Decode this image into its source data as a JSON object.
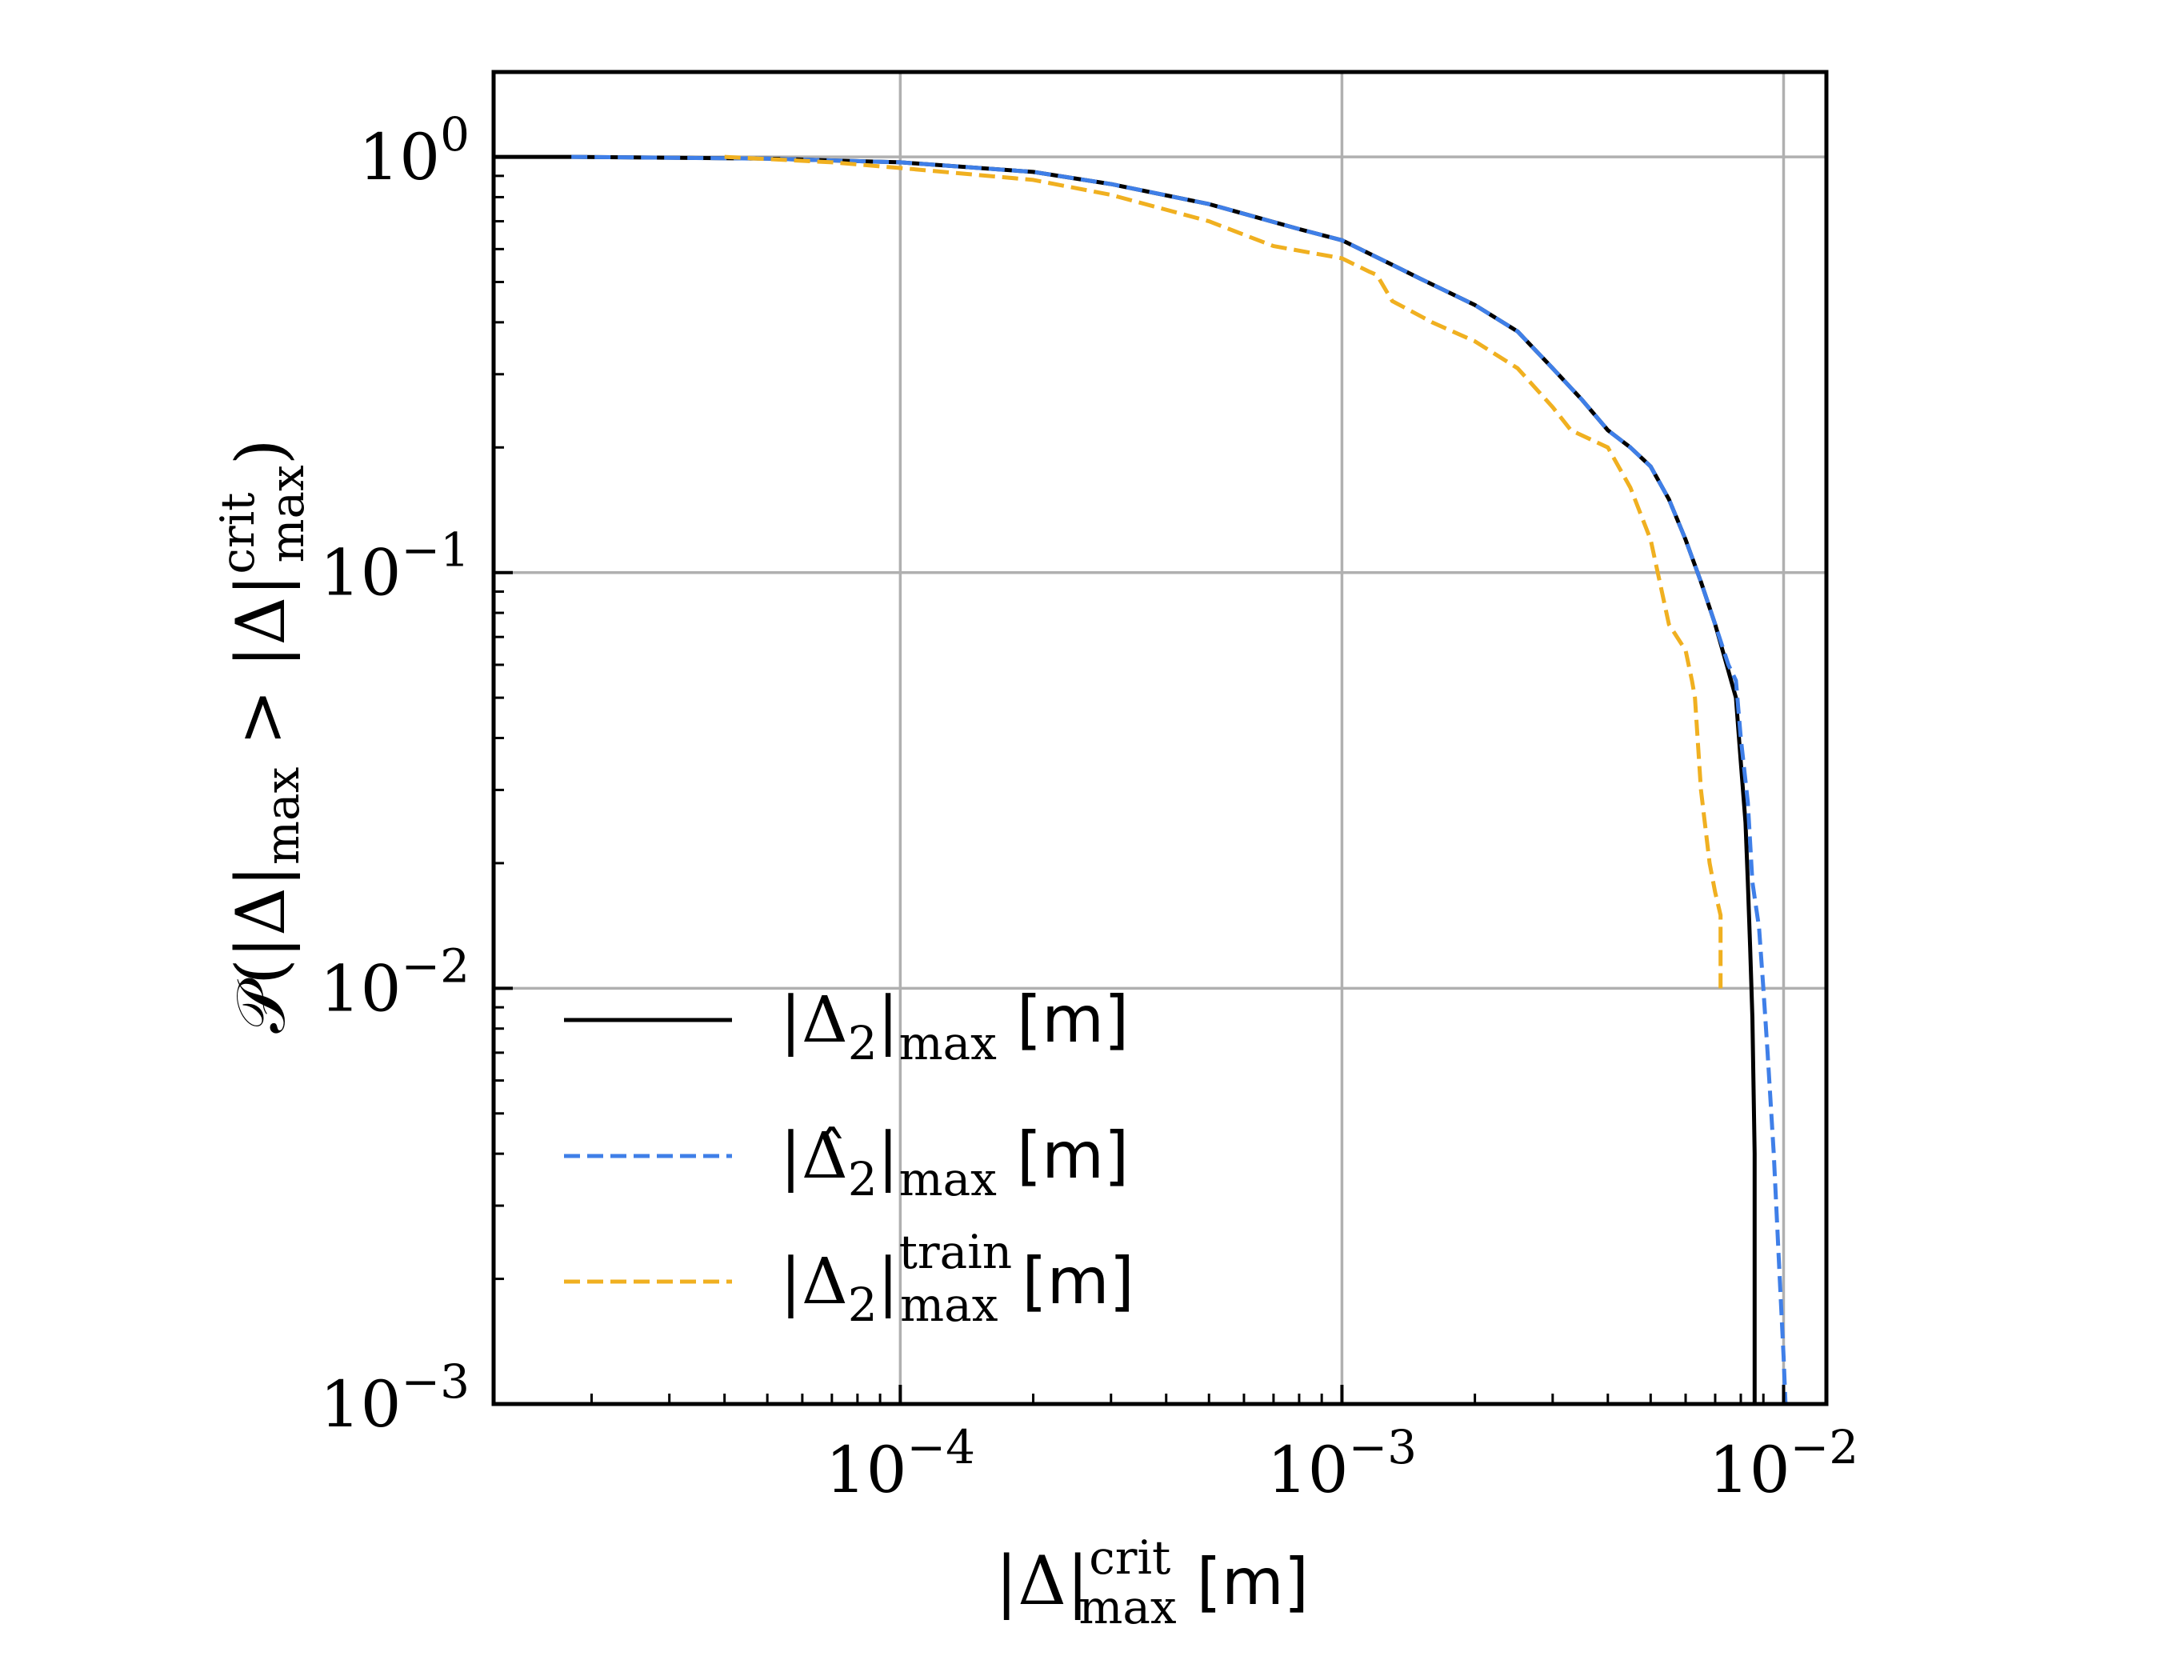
{
  "chart_data": {
    "type": "line",
    "xscale": "log",
    "yscale": "log",
    "xlim": [
      1.2e-05,
      0.0125
    ],
    "ylim": [
      0.001,
      1.6
    ],
    "grid": true,
    "legend_position": "lower-left",
    "xlabel": {
      "main": "|Δ|",
      "sup": "crit",
      "sub": "max",
      "unit": "[m]"
    },
    "ylabel": {
      "prefix": "𝒫(|Δ|",
      "sub1": "max",
      "middle": " > |Δ|",
      "sup2": "crit",
      "sub2": "max",
      "suffix": ")"
    },
    "xticks": [
      {
        "value": 0.0001,
        "base": "10",
        "exp": "−4"
      },
      {
        "value": 0.001,
        "base": "10",
        "exp": "−3"
      },
      {
        "value": 0.01,
        "base": "10",
        "exp": "−2"
      }
    ],
    "yticks": [
      {
        "value": 1,
        "base": "10",
        "exp": "0"
      },
      {
        "value": 0.1,
        "base": "10",
        "exp": "−1"
      },
      {
        "value": 0.01,
        "base": "10",
        "exp": "−2"
      },
      {
        "value": 0.001,
        "base": "10",
        "exp": "−3"
      }
    ],
    "series": [
      {
        "key": "true",
        "legend": {
          "main": "|Δ",
          "sub": "2",
          "close": "|",
          "sub2": "max",
          "sup2": "",
          "unit": "[m]"
        },
        "color": "#000000",
        "dash": "solid",
        "x": [
          1.2e-05,
          1.8e-05,
          5e-05,
          0.0001,
          0.0002,
          0.0003,
          0.0005,
          0.0008,
          0.001,
          0.0013,
          0.0015,
          0.002,
          0.0025,
          0.003,
          0.0035,
          0.004,
          0.0045,
          0.005,
          0.0055,
          0.006,
          0.0065,
          0.007,
          0.0075,
          0.0078,
          0.008,
          0.0082,
          0.0083,
          0.0084,
          0.0085,
          0.0086,
          0.0086
        ],
        "y": [
          1.0,
          1.0,
          0.99,
          0.97,
          0.92,
          0.86,
          0.77,
          0.67,
          0.63,
          0.55,
          0.51,
          0.44,
          0.38,
          0.31,
          0.26,
          0.22,
          0.2,
          0.18,
          0.15,
          0.12,
          0.095,
          0.075,
          0.058,
          0.05,
          0.035,
          0.025,
          0.018,
          0.0125,
          0.0085,
          0.004,
          0.001
        ]
      },
      {
        "key": "predicted",
        "legend": {
          "main": "|Δ̂",
          "sub": "2",
          "close": "|",
          "sub2": "max",
          "sup2": "",
          "unit": "[m]"
        },
        "color": "#3f7fe8",
        "dash": "dashed",
        "x": [
          1.8e-05,
          5e-05,
          0.0001,
          0.0002,
          0.0003,
          0.0005,
          0.0008,
          0.001,
          0.0013,
          0.0015,
          0.002,
          0.0025,
          0.003,
          0.0035,
          0.004,
          0.0045,
          0.005,
          0.0055,
          0.006,
          0.0065,
          0.007,
          0.0075,
          0.0078,
          0.008,
          0.0083,
          0.0085,
          0.0088,
          0.009,
          0.0092,
          0.0095,
          0.0098,
          0.01,
          0.0101
        ],
        "y": [
          1.0,
          0.99,
          0.97,
          0.92,
          0.86,
          0.77,
          0.67,
          0.63,
          0.55,
          0.51,
          0.44,
          0.38,
          0.31,
          0.26,
          0.22,
          0.2,
          0.18,
          0.15,
          0.12,
          0.095,
          0.075,
          0.06,
          0.055,
          0.04,
          0.028,
          0.018,
          0.014,
          0.01,
          0.007,
          0.004,
          0.002,
          0.0013,
          0.001
        ]
      },
      {
        "key": "train",
        "legend": {
          "main": "|Δ",
          "sub": "2",
          "close": "|",
          "sub2": "max",
          "sup2": "train",
          "unit": "[m]"
        },
        "color": "#f0b020",
        "dash": "dashed",
        "x": [
          4e-05,
          7e-05,
          0.0001,
          0.0002,
          0.0003,
          0.0005,
          0.0007,
          0.001,
          0.00115,
          0.0012,
          0.0013,
          0.0016,
          0.002,
          0.0025,
          0.003,
          0.0033,
          0.004,
          0.0045,
          0.005,
          0.0055,
          0.006,
          0.0062,
          0.0063,
          0.0065,
          0.0068,
          0.007,
          0.0072,
          0.0072
        ],
        "y": [
          1.0,
          0.97,
          0.94,
          0.88,
          0.81,
          0.7,
          0.61,
          0.57,
          0.53,
          0.52,
          0.45,
          0.4,
          0.36,
          0.31,
          0.25,
          0.22,
          0.2,
          0.16,
          0.12,
          0.075,
          0.065,
          0.055,
          0.05,
          0.03,
          0.02,
          0.017,
          0.015,
          0.01
        ]
      }
    ]
  }
}
